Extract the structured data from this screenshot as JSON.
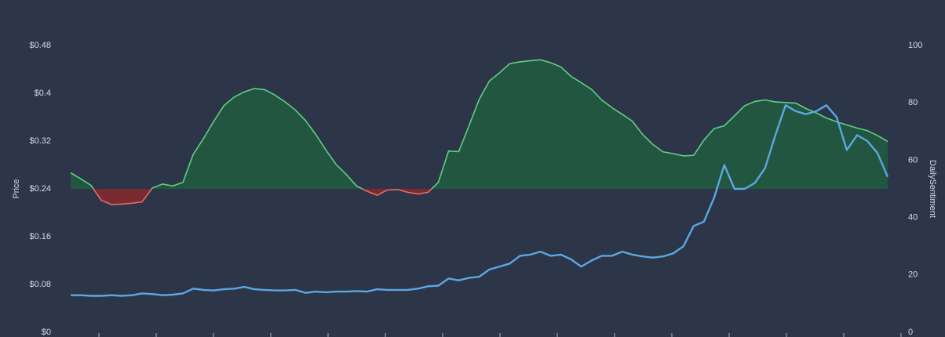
{
  "chart_data": {
    "type": "line",
    "y_label": "Price",
    "y2_label": "DailySentiment",
    "ylim": [
      0,
      0.48
    ],
    "yticks": [
      {
        "value": 0,
        "label": "$0"
      },
      {
        "value": 0.08,
        "label": "$0.08"
      },
      {
        "value": 0.16,
        "label": "$0.16"
      },
      {
        "value": 0.24,
        "label": "$0.24"
      },
      {
        "value": 0.32,
        "label": "$0.32"
      },
      {
        "value": 0.4,
        "label": "$0.4"
      },
      {
        "value": 0.48,
        "label": "$0.48"
      }
    ],
    "y2lim": [
      0,
      100
    ],
    "y2ticks": [
      0,
      20,
      40,
      60,
      80,
      100
    ],
    "grid": false,
    "series": [
      {
        "axis": "y2",
        "color": "#5fcf84",
        "fill": "#235640",
        "negative_color": "#e46a6c",
        "negative_fill": "#7a2b31",
        "threshold": 50,
        "values": [
          55.6,
          53.5,
          51.2,
          46,
          44.5,
          44.7,
          45,
          45.5,
          50.3,
          51.7,
          51,
          52.3,
          62,
          67.5,
          73.5,
          79,
          82,
          83.8,
          85,
          84.6,
          82.7,
          80.3,
          77.5,
          73.8,
          69,
          63.5,
          58.5,
          55,
          51,
          49.2,
          47.8,
          49.6,
          49.8,
          48.8,
          48.2,
          48.8,
          52.3,
          63.2,
          63,
          72,
          81.2,
          87.6,
          90.5,
          93.7,
          94.3,
          94.7,
          95,
          94,
          92.5,
          89.2,
          87,
          84.7,
          81,
          78.3,
          76,
          73.6,
          69,
          65.5,
          62.9,
          62.3,
          61.5,
          61.7,
          67,
          71,
          72,
          75.5,
          79,
          80.5,
          81,
          80.3,
          80.1,
          79.9,
          78,
          76.5,
          74.7,
          73.4,
          72.3,
          71.2,
          70.3,
          68.6,
          66.5
        ]
      },
      {
        "axis": "y",
        "color": "#5aa8e2",
        "values": [
          0.062,
          0.062,
          0.061,
          0.061,
          0.062,
          0.061,
          0.062,
          0.065,
          0.064,
          0.062,
          0.063,
          0.065,
          0.073,
          0.071,
          0.07,
          0.072,
          0.073,
          0.076,
          0.072,
          0.071,
          0.07,
          0.07,
          0.071,
          0.066,
          0.068,
          0.067,
          0.068,
          0.068,
          0.069,
          0.068,
          0.072,
          0.071,
          0.071,
          0.071,
          0.073,
          0.077,
          0.078,
          0.09,
          0.087,
          0.091,
          0.093,
          0.105,
          0.11,
          0.115,
          0.128,
          0.13,
          0.135,
          0.128,
          0.13,
          0.122,
          0.11,
          0.12,
          0.128,
          0.128,
          0.135,
          0.13,
          0.127,
          0.125,
          0.127,
          0.132,
          0.144,
          0.178,
          0.185,
          0.225,
          0.28,
          0.24,
          0.24,
          0.25,
          0.275,
          0.33,
          0.38,
          0.37,
          0.365,
          0.37,
          0.38,
          0.36,
          0.305,
          0.33,
          0.32,
          0.3,
          0.26
        ]
      }
    ]
  }
}
